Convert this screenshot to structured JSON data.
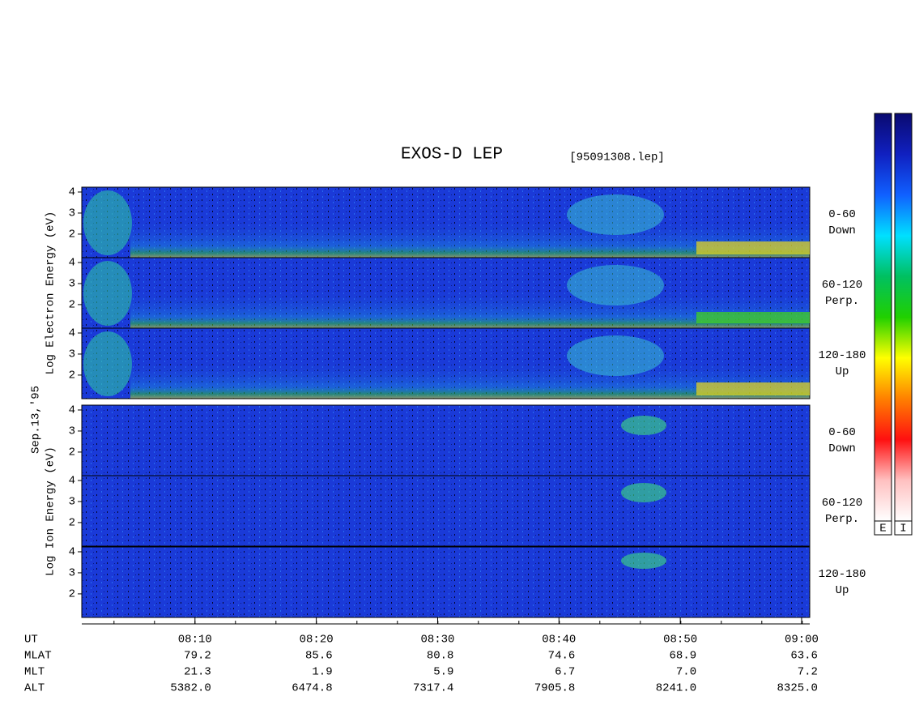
{
  "title": "EXOS-D LEP",
  "file": "[95091308.lep]",
  "date": "Sep.13,'95",
  "groups": [
    {
      "label": "Log Electron Energy (eV)",
      "panels": [
        {
          "angle": "0-60",
          "direction": "Down"
        },
        {
          "angle": "60-120",
          "direction": "Perp."
        },
        {
          "angle": "120-180",
          "direction": "Up"
        }
      ]
    },
    {
      "label": "Log Ion Energy (eV)",
      "panels": [
        {
          "angle": "0-60",
          "direction": "Down"
        },
        {
          "angle": "60-120",
          "direction": "Perp."
        },
        {
          "angle": "120-180",
          "direction": "Up"
        }
      ]
    }
  ],
  "energy_axis": {
    "ylim": [
      0.88,
      4.23
    ],
    "yticks": [
      2,
      3,
      4
    ]
  },
  "time_axis": {
    "xlim": [
      0.67,
      60.67
    ],
    "xticks": [
      {
        "value": 10,
        "label": "08:10"
      },
      {
        "value": 20,
        "label": "08:20"
      },
      {
        "value": 30,
        "label": "08:30"
      },
      {
        "value": 40,
        "label": "08:40"
      },
      {
        "value": 50,
        "label": "08:50"
      },
      {
        "value": 60,
        "label": "09:00"
      }
    ]
  },
  "ephemeris": {
    "time_label": "UT",
    "rows": [
      {
        "label": "MLAT",
        "values": [
          "79.2",
          "85.6",
          "80.8",
          "74.6",
          "68.9",
          "63.6"
        ]
      },
      {
        "label": "MLT",
        "values": [
          "21.3",
          "1.9",
          "5.9",
          "6.7",
          "7.0",
          "7.2"
        ]
      },
      {
        "label": "ALT",
        "values": [
          "5382.0",
          "6474.8",
          "7317.4",
          "7905.8",
          "8241.0",
          "8325.0"
        ]
      }
    ]
  },
  "colorbars": [
    {
      "label": "E"
    },
    {
      "label": "I"
    }
  ],
  "colorbar_colors": [
    "#0a0a70",
    "#1020c0",
    "#1060ff",
    "#00e0ff",
    "#00c060",
    "#20d000",
    "#ffff00",
    "#ff8000",
    "#ff1010",
    "#ffc0c0",
    "#ffffff"
  ]
}
